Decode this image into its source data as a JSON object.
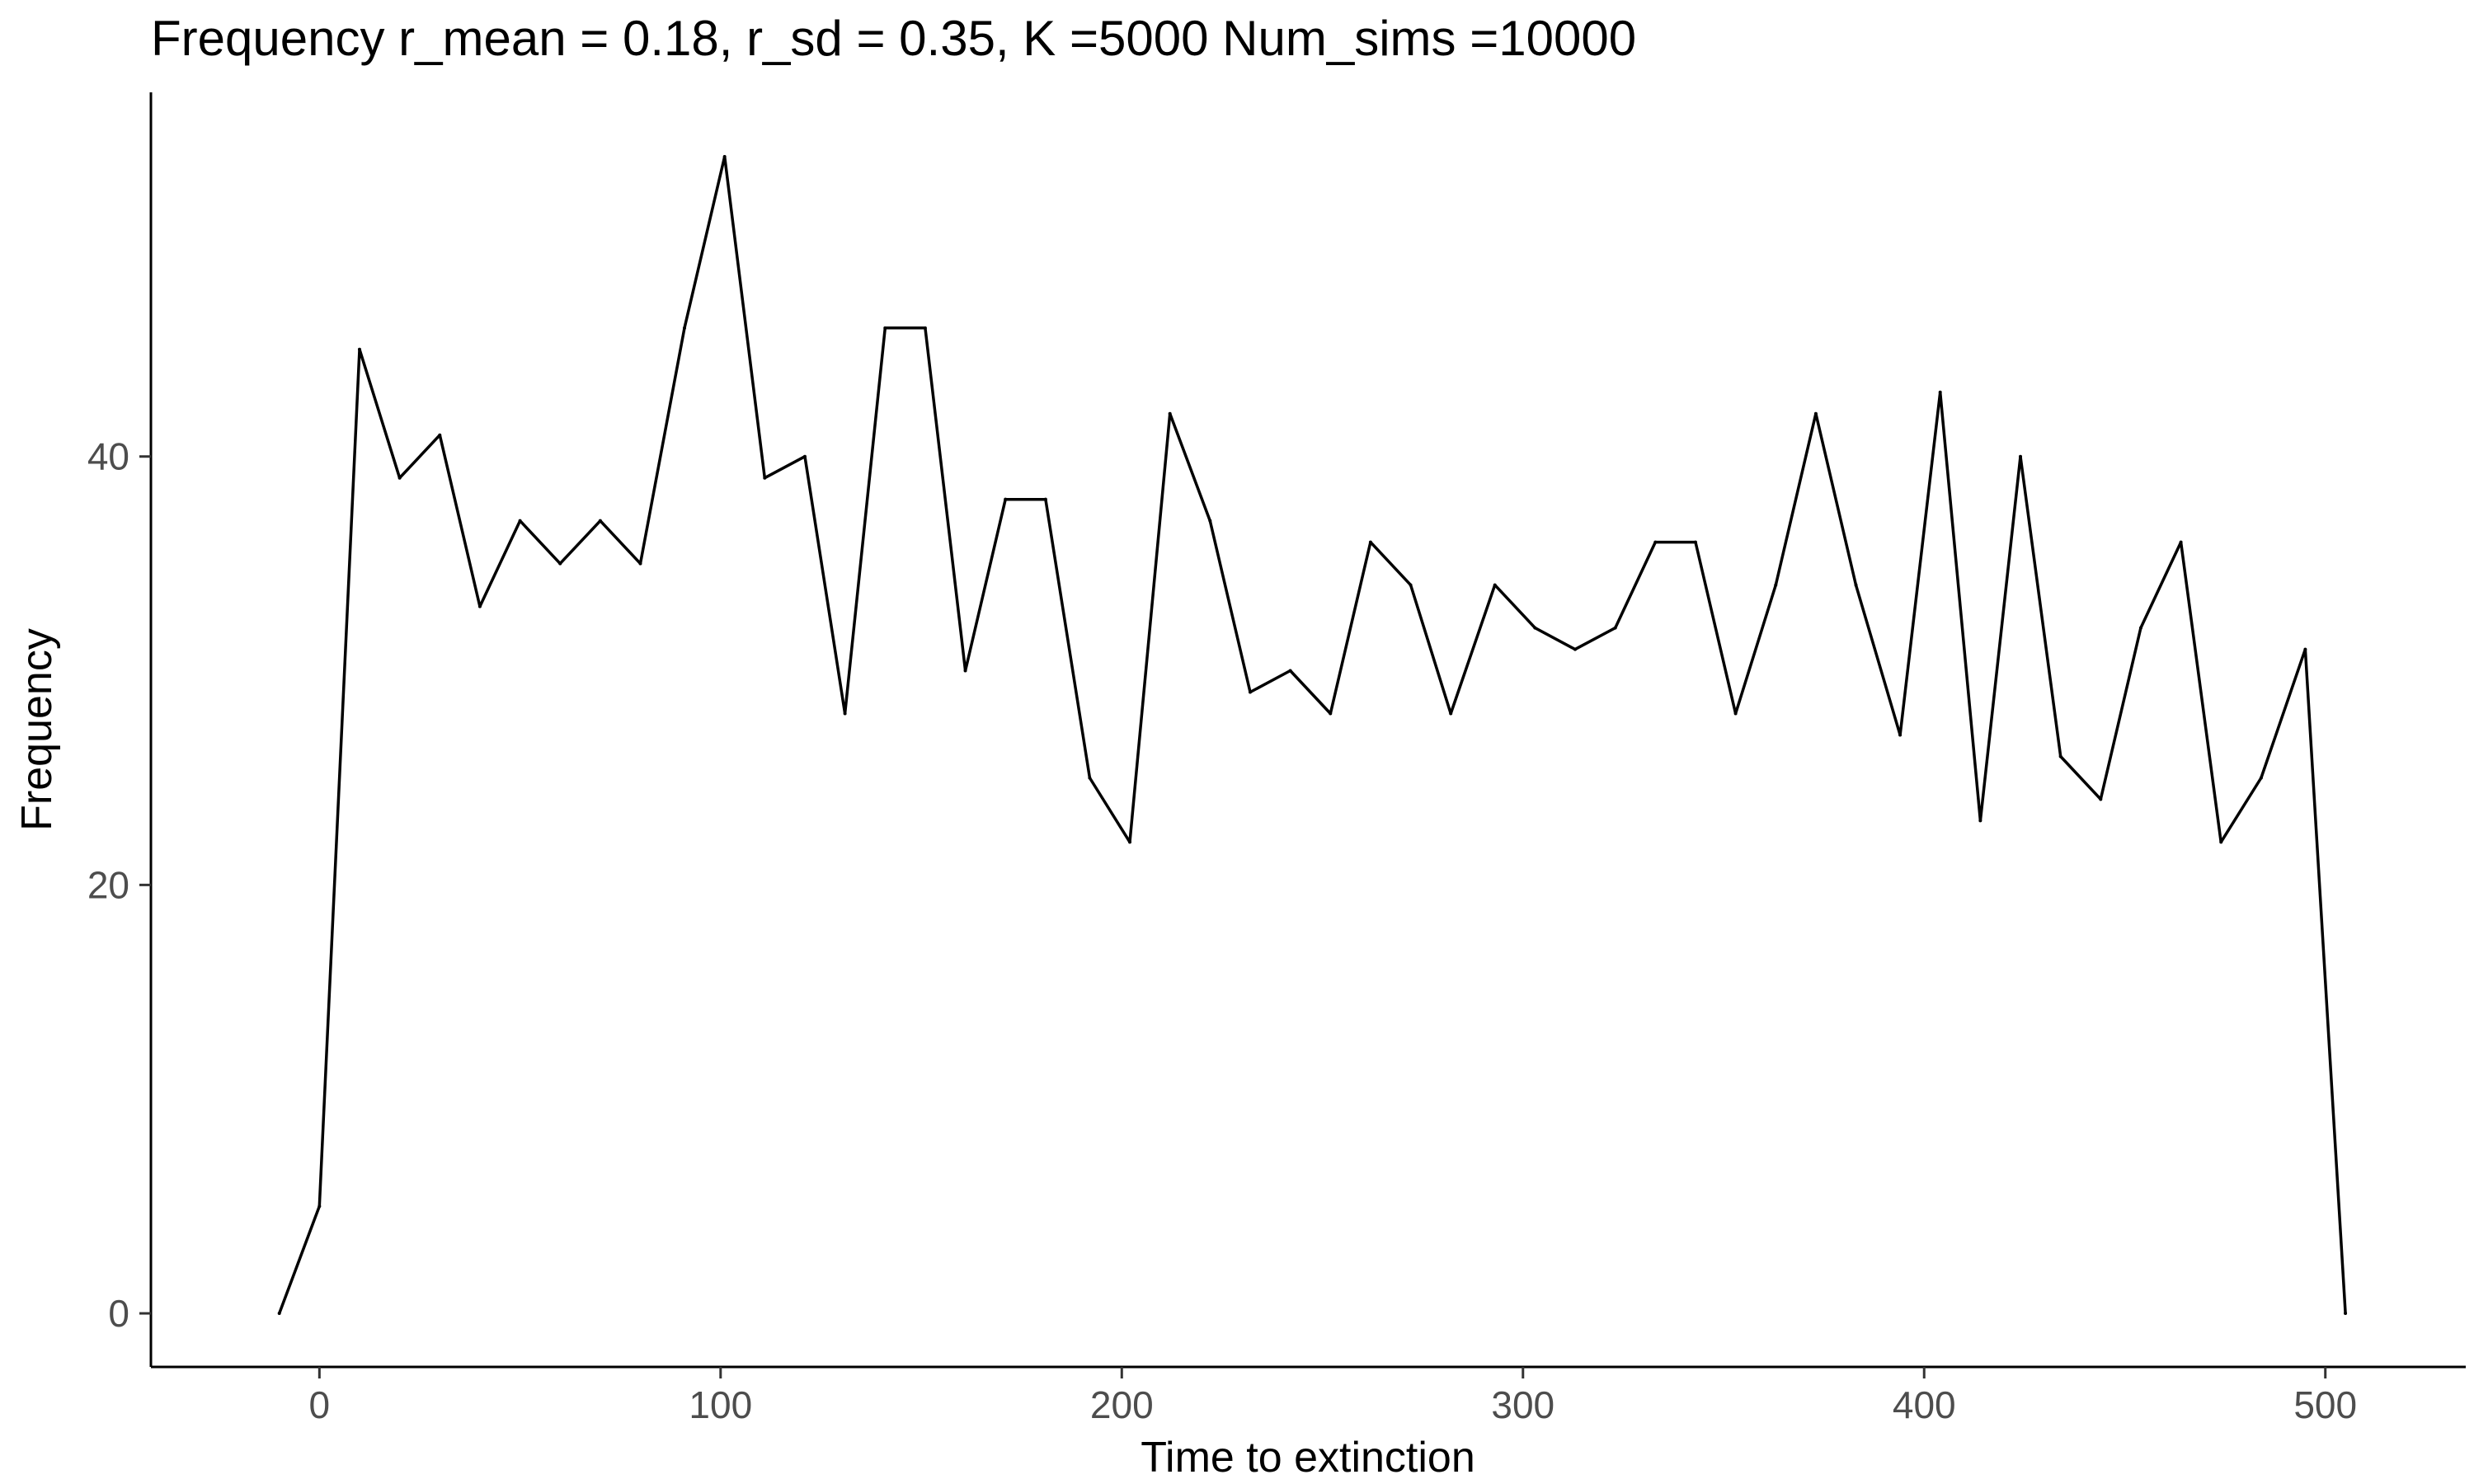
{
  "chart_data": {
    "type": "line",
    "title": "Frequency r_mean = 0.18, r_sd = 0.35, K =5000 Num_sims =10000",
    "xlabel": "Time to extinction",
    "ylabel": "Frequency",
    "xlim": [
      -42,
      535
    ],
    "ylim": [
      -2.5,
      57
    ],
    "x_ticks": [
      0,
      100,
      200,
      300,
      400,
      500
    ],
    "y_ticks": [
      0,
      20,
      40
    ],
    "grid": false,
    "legend": "none",
    "line_color": "#000000",
    "series": [
      {
        "x": [
          -10,
          0,
          10,
          20,
          30,
          40,
          50,
          60,
          70,
          80,
          91,
          101,
          111,
          121,
          131,
          141,
          151,
          161,
          171,
          181,
          192,
          202,
          212,
          222,
          232,
          242,
          252,
          262,
          272,
          282,
          293,
          303,
          313,
          323,
          333,
          343,
          353,
          363,
          373,
          383,
          394,
          404,
          414,
          424,
          434,
          444,
          454,
          464,
          474,
          484,
          495,
          505
        ],
        "y": [
          0,
          5,
          45,
          39,
          41,
          33,
          37,
          35,
          37,
          35,
          46,
          54,
          39,
          40,
          28,
          46,
          46,
          30,
          38,
          38,
          25,
          22,
          42,
          37,
          29,
          30,
          28,
          36,
          34,
          28,
          34,
          32,
          31,
          32,
          36,
          36,
          28,
          34,
          42,
          34,
          27,
          43,
          23,
          40,
          26,
          24,
          32,
          36,
          22,
          25,
          31,
          0
        ]
      }
    ]
  }
}
